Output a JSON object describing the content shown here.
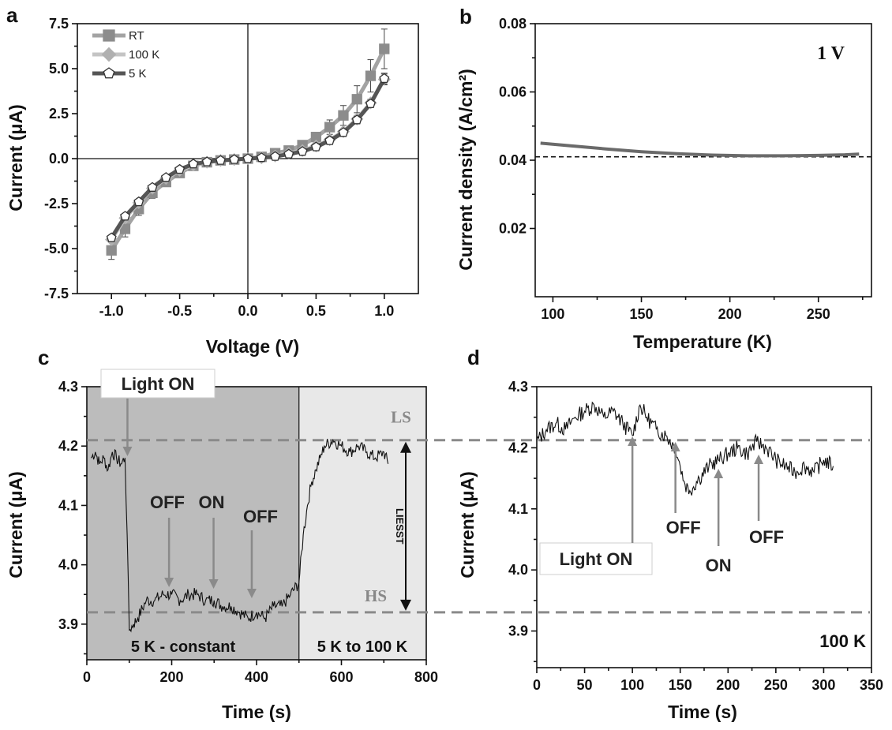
{
  "chart_data": [
    {
      "panel": "a",
      "type": "line",
      "xlabel": "Voltage (V)",
      "ylabel": "Current (μA)",
      "xlim": [
        -1.25,
        1.25
      ],
      "ylim": [
        -7.5,
        7.5
      ],
      "xticks": [
        "-1.0",
        "-0.5",
        "0.0",
        "0.5",
        "1.0"
      ],
      "xtick_values": [
        -1.0,
        -0.5,
        0.0,
        0.5,
        1.0
      ],
      "yticks": [
        "-7.5",
        "-5.0",
        "-2.5",
        "0.0",
        "2.5",
        "5.0",
        "7.5"
      ],
      "ytick_values": [
        -7.5,
        -5.0,
        -2.5,
        0.0,
        2.5,
        5.0,
        7.5
      ],
      "legend_position": "top-left",
      "zero_lines": true,
      "x": [
        -1.0,
        -0.9,
        -0.8,
        -0.7,
        -0.6,
        -0.5,
        -0.4,
        -0.3,
        -0.2,
        -0.1,
        0.0,
        0.1,
        0.2,
        0.3,
        0.4,
        0.5,
        0.6,
        0.7,
        0.8,
        0.9,
        1.0
      ],
      "series": [
        {
          "name": "RT",
          "marker": "square",
          "color": "#8c8c8c",
          "line_color": "#a3a3a3",
          "values": [
            -5.1,
            -3.9,
            -2.8,
            -1.9,
            -1.3,
            -0.8,
            -0.4,
            -0.2,
            -0.1,
            -0.05,
            0.0,
            0.1,
            0.3,
            0.45,
            0.75,
            1.2,
            1.75,
            2.4,
            3.3,
            4.6,
            6.1
          ],
          "errors": [
            0.5,
            0.45,
            0.35,
            0.3,
            0.2,
            0.15,
            0.1,
            0.05,
            0.05,
            0.05,
            0.0,
            0.05,
            0.05,
            0.1,
            0.15,
            0.25,
            0.4,
            0.55,
            0.75,
            0.9,
            1.1
          ]
        },
        {
          "name": "100 K",
          "marker": "diamond",
          "color": "#b0b0b0",
          "line_color": "#c4c4c4",
          "values": [
            -4.5,
            -3.3,
            -2.45,
            -1.65,
            -1.1,
            -0.65,
            -0.35,
            -0.2,
            -0.1,
            -0.05,
            0.0,
            0.05,
            0.15,
            0.3,
            0.45,
            0.7,
            1.05,
            1.5,
            2.2,
            3.1,
            4.4
          ],
          "errors": [
            0.15,
            0.15,
            0.1,
            0.1,
            0.1,
            0.05,
            0.05,
            0.05,
            0.05,
            0.05,
            0.0,
            0.05,
            0.05,
            0.05,
            0.05,
            0.1,
            0.1,
            0.15,
            0.2,
            0.2,
            0.3
          ]
        },
        {
          "name": "5 K",
          "marker": "pentagon",
          "color": "#4a4a4a",
          "line_color": "#555555",
          "values": [
            -4.4,
            -3.2,
            -2.4,
            -1.6,
            -1.05,
            -0.6,
            -0.3,
            -0.18,
            -0.1,
            -0.05,
            0.0,
            0.05,
            0.12,
            0.25,
            0.4,
            0.65,
            1.0,
            1.45,
            2.15,
            3.05,
            4.45
          ],
          "errors": [
            0.15,
            0.15,
            0.1,
            0.1,
            0.1,
            0.05,
            0.05,
            0.05,
            0.05,
            0.05,
            0.0,
            0.05,
            0.05,
            0.05,
            0.05,
            0.1,
            0.1,
            0.15,
            0.2,
            0.2,
            0.3
          ]
        }
      ]
    },
    {
      "panel": "b",
      "type": "line",
      "xlabel": "Temperature (K)",
      "ylabel": "Current density (A/cm²)",
      "xlim": [
        90,
        280
      ],
      "ylim": [
        0.0,
        0.08
      ],
      "xticks": [
        "100",
        "150",
        "200",
        "250"
      ],
      "xtick_values": [
        100,
        150,
        200,
        250
      ],
      "yticks": [
        "0.02",
        "0.04",
        "0.06",
        "0.08"
      ],
      "ytick_values": [
        0.02,
        0.04,
        0.06,
        0.08
      ],
      "annotation": "1 V",
      "reference_line": 0.041,
      "series": [
        {
          "color": "#6a6a6a",
          "x": [
            93,
            110,
            130,
            150,
            170,
            190,
            210,
            230,
            250,
            265,
            273
          ],
          "values": [
            0.045,
            0.0442,
            0.0433,
            0.0425,
            0.0419,
            0.0415,
            0.0413,
            0.0413,
            0.0414,
            0.0416,
            0.0418
          ]
        }
      ]
    },
    {
      "panel": "c",
      "type": "line",
      "xlabel": "Time (s)",
      "ylabel": "Current (μA)",
      "xlim": [
        0,
        800
      ],
      "ylim": [
        3.84,
        4.3
      ],
      "xticks": [
        "0",
        "200",
        "400",
        "600",
        "800"
      ],
      "xtick_values": [
        0,
        200,
        400,
        600,
        800
      ],
      "yticks": [
        "3.9",
        "4.0",
        "4.1",
        "4.2",
        "4.3"
      ],
      "ytick_values": [
        3.9,
        4.0,
        4.1,
        4.2,
        4.3
      ],
      "regions": [
        {
          "label": "5 K - constant",
          "from": 0,
          "to": 500,
          "color": "#bcbcbc"
        },
        {
          "label": "5 K to 100 K",
          "from": 500,
          "to": 800,
          "color": "#e8e8e8"
        }
      ],
      "levels": {
        "LS": 4.21,
        "HS": 3.92
      },
      "liesst_label": "LIESST",
      "annotations": [
        {
          "text": "Light ON",
          "x": 92,
          "box": true
        },
        {
          "text": "OFF",
          "x": 190
        },
        {
          "text": "ON",
          "x": 295
        },
        {
          "text": "OFF",
          "x": 385
        }
      ],
      "series": [
        {
          "color": "#111111",
          "x": [
            10,
            20,
            30,
            40,
            50,
            60,
            70,
            80,
            90,
            95,
            100,
            110,
            120,
            140,
            160,
            180,
            200,
            220,
            240,
            260,
            280,
            300,
            320,
            340,
            360,
            380,
            400,
            420,
            440,
            460,
            480,
            500,
            510,
            520,
            530,
            540,
            550,
            560,
            580,
            600,
            620,
            640,
            660,
            680,
            700,
            710
          ],
          "values": [
            4.18,
            4.19,
            4.17,
            4.18,
            4.16,
            4.19,
            4.18,
            4.17,
            4.18,
            4.05,
            3.89,
            3.9,
            3.91,
            3.94,
            3.94,
            3.95,
            3.95,
            3.94,
            3.95,
            3.95,
            3.94,
            3.94,
            3.93,
            3.93,
            3.92,
            3.91,
            3.92,
            3.91,
            3.93,
            3.93,
            3.95,
            3.97,
            4.05,
            4.1,
            4.14,
            4.16,
            4.18,
            4.2,
            4.21,
            4.2,
            4.19,
            4.2,
            4.19,
            4.18,
            4.19,
            4.17
          ]
        }
      ]
    },
    {
      "panel": "d",
      "type": "line",
      "xlabel": "Time (s)",
      "ylabel": "Current (μA)",
      "xlim": [
        0,
        350
      ],
      "ylim": [
        3.84,
        4.3
      ],
      "xticks": [
        "0",
        "50",
        "100",
        "150",
        "200",
        "250",
        "300",
        "350"
      ],
      "xtick_values": [
        0,
        50,
        100,
        150,
        200,
        250,
        300,
        350
      ],
      "yticks": [
        "3.9",
        "4.0",
        "4.1",
        "4.2",
        "4.3"
      ],
      "ytick_values": [
        3.9,
        4.0,
        4.1,
        4.2,
        4.3
      ],
      "levels": {
        "LS": 4.21,
        "HS": 3.92
      },
      "corner_label": "100 K",
      "annotations": [
        {
          "text": "Light ON",
          "x": 100,
          "box": true
        },
        {
          "text": "OFF",
          "x": 145
        },
        {
          "text": "ON",
          "x": 190
        },
        {
          "text": "OFF",
          "x": 232
        }
      ],
      "series": [
        {
          "color": "#111111",
          "x": [
            0,
            10,
            20,
            30,
            40,
            50,
            60,
            70,
            80,
            90,
            100,
            108,
            115,
            125,
            135,
            145,
            150,
            155,
            160,
            170,
            180,
            190,
            200,
            210,
            220,
            230,
            240,
            250,
            260,
            270,
            280,
            290,
            300,
            310
          ],
          "values": [
            4.21,
            4.23,
            4.24,
            4.23,
            4.25,
            4.26,
            4.27,
            4.25,
            4.26,
            4.24,
            4.22,
            4.27,
            4.25,
            4.23,
            4.22,
            4.2,
            4.17,
            4.14,
            4.13,
            4.15,
            4.17,
            4.18,
            4.19,
            4.2,
            4.19,
            4.21,
            4.2,
            4.18,
            4.17,
            4.16,
            4.17,
            4.16,
            4.18,
            4.17
          ]
        }
      ]
    }
  ]
}
